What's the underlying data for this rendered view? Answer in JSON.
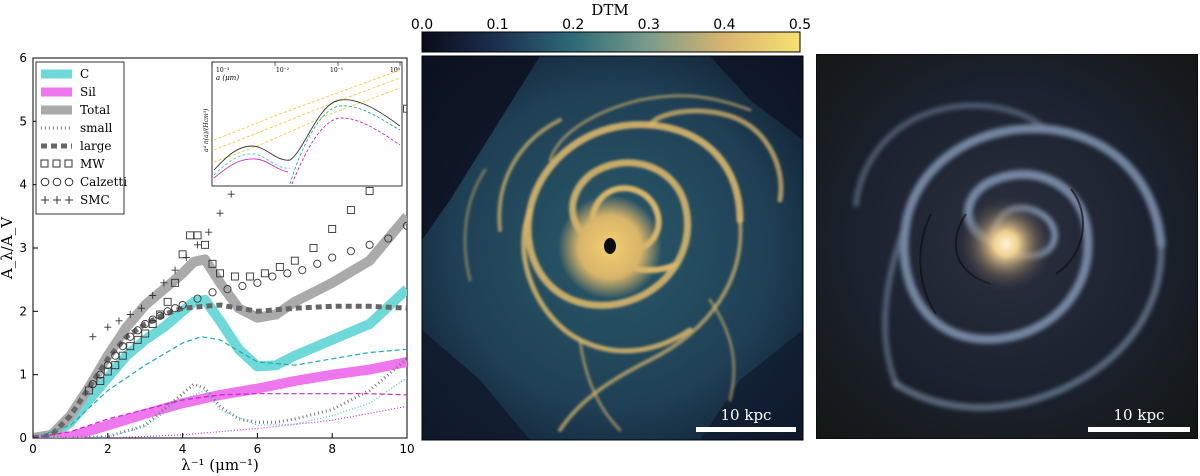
{
  "chart_data": [
    {
      "type": "line",
      "xlabel": "λ⁻¹ (μm⁻¹)",
      "ylabel": "A_λ/A_V",
      "xlim": [
        0,
        10
      ],
      "ylim": [
        0,
        6
      ],
      "xticks": [
        "0",
        "2",
        "4",
        "6",
        "8",
        "10"
      ],
      "yticks": [
        "0",
        "1",
        "2",
        "3",
        "4",
        "5",
        "6"
      ],
      "legend_position": "top-left",
      "legend": [
        {
          "label": "C",
          "color": "#6fd9d9",
          "style": "thick"
        },
        {
          "label": "Sil",
          "color": "#ee77ee",
          "style": "thick"
        },
        {
          "label": "Total",
          "color": "#aaaaaa",
          "style": "thick"
        },
        {
          "label": "small",
          "color": "#999999",
          "style": "dotted"
        },
        {
          "label": "large",
          "color": "#666666",
          "style": "dashed"
        },
        {
          "label": "MW",
          "color": "#333333",
          "style": "square"
        },
        {
          "label": "Calzetti",
          "color": "#333333",
          "style": "circle"
        },
        {
          "label": "SMC",
          "color": "#333333",
          "style": "plus"
        }
      ],
      "series": [
        {
          "name": "C",
          "color": "#6fd9d9",
          "width": 10,
          "x": [
            0,
            0.5,
            1,
            1.5,
            2,
            2.5,
            3,
            3.5,
            4,
            4.3,
            4.6,
            5,
            5.5,
            6,
            6.5,
            7,
            8,
            9,
            10
          ],
          "y": [
            0,
            0.03,
            0.25,
            0.6,
            0.95,
            1.3,
            1.55,
            1.75,
            2.0,
            2.15,
            2.18,
            1.85,
            1.4,
            1.13,
            1.15,
            1.3,
            1.55,
            1.8,
            2.35
          ]
        },
        {
          "name": "Sil",
          "color": "#ee77ee",
          "width": 10,
          "x": [
            0,
            1,
            2,
            3,
            4,
            5,
            6,
            7,
            8,
            9,
            10
          ],
          "y": [
            0,
            0.02,
            0.2,
            0.38,
            0.55,
            0.68,
            0.78,
            0.9,
            1.0,
            1.08,
            1.2
          ]
        },
        {
          "name": "Total",
          "color": "#aaaaaa",
          "width": 10,
          "x": [
            0,
            0.5,
            1,
            1.5,
            2,
            2.5,
            3,
            3.5,
            4,
            4.3,
            4.6,
            5,
            5.5,
            6,
            6.5,
            7,
            8,
            9,
            10
          ],
          "y": [
            0,
            0.05,
            0.35,
            0.8,
            1.3,
            1.75,
            2.1,
            2.35,
            2.6,
            2.78,
            2.82,
            2.45,
            2.05,
            1.9,
            1.95,
            2.15,
            2.45,
            2.8,
            3.5
          ]
        },
        {
          "name": "small",
          "color": "#777777",
          "width": 3,
          "dash": "1,3",
          "x": [
            0,
            1,
            2,
            3,
            3.5,
            4,
            4.3,
            4.6,
            5,
            5.5,
            6,
            6.5,
            7,
            8,
            9,
            10
          ],
          "y": [
            0,
            0,
            0.02,
            0.2,
            0.45,
            0.7,
            0.85,
            0.78,
            0.5,
            0.3,
            0.25,
            0.25,
            0.3,
            0.45,
            0.75,
            1.25
          ]
        },
        {
          "name": "large",
          "color": "#666666",
          "width": 5,
          "dash": "6,4",
          "x": [
            0,
            0.5,
            1,
            1.5,
            2,
            2.5,
            3,
            3.5,
            4,
            5,
            6,
            7,
            8,
            9,
            10
          ],
          "y": [
            0,
            0.05,
            0.35,
            0.8,
            1.25,
            1.6,
            1.8,
            1.95,
            2.05,
            2.1,
            2.0,
            2.05,
            2.08,
            2.08,
            2.05
          ]
        },
        {
          "name": "C-small",
          "color": "#44cccc",
          "width": 1.2,
          "dash": "1,2",
          "x": [
            0,
            2,
            3,
            4,
            4.6,
            5,
            6,
            7,
            8,
            9,
            10
          ],
          "y": [
            0,
            0.02,
            0.18,
            0.6,
            0.75,
            0.45,
            0.2,
            0.22,
            0.35,
            0.55,
            0.95
          ]
        },
        {
          "name": "C-large",
          "color": "#22aaaa",
          "width": 1.2,
          "dash": "5,3",
          "x": [
            0,
            1,
            2,
            3,
            4,
            4.5,
            5,
            6,
            7,
            8,
            9,
            10
          ],
          "y": [
            0,
            0.2,
            0.75,
            1.15,
            1.5,
            1.6,
            1.55,
            1.2,
            1.15,
            1.25,
            1.35,
            1.4
          ]
        },
        {
          "name": "Sil-small",
          "color": "#cc33cc",
          "width": 1.2,
          "dash": "1,2",
          "x": [
            0,
            2,
            4,
            6,
            8,
            10
          ],
          "y": [
            0,
            0,
            0.05,
            0.15,
            0.28,
            0.5
          ]
        },
        {
          "name": "Sil-large",
          "color": "#cc22cc",
          "width": 1.2,
          "dash": "5,3",
          "x": [
            0,
            1,
            2,
            3,
            4,
            5,
            6,
            7,
            8,
            9,
            10
          ],
          "y": [
            0,
            0.1,
            0.3,
            0.45,
            0.6,
            0.68,
            0.7,
            0.7,
            0.7,
            0.7,
            0.68
          ]
        }
      ],
      "markers": [
        {
          "name": "MW",
          "shape": "square",
          "x": [
            1.5,
            1.8,
            2.0,
            2.2,
            2.4,
            2.6,
            2.8,
            3.0,
            3.2,
            3.4,
            3.6,
            3.8,
            4.0,
            4.2,
            4.4,
            4.6,
            4.8,
            5.0,
            5.4,
            5.8,
            6.2,
            6.6,
            7.0,
            7.5,
            8.0,
            8.5,
            9.0,
            10.0
          ],
          "y": [
            0.75,
            0.9,
            1.05,
            1.15,
            1.3,
            1.45,
            1.55,
            1.65,
            1.8,
            1.95,
            2.15,
            2.45,
            2.9,
            3.2,
            3.2,
            3.05,
            2.75,
            2.6,
            2.55,
            2.55,
            2.6,
            2.7,
            2.8,
            3.0,
            3.3,
            3.6,
            3.9,
            5.2
          ]
        },
        {
          "name": "Calzetti",
          "shape": "circle",
          "x": [
            1.6,
            1.8,
            2.0,
            2.2,
            2.4,
            2.6,
            2.8,
            3.0,
            3.2,
            3.4,
            3.6,
            3.8,
            4.0,
            4.4,
            4.8,
            5.2,
            5.6,
            6.0,
            6.4,
            6.8,
            7.2,
            7.6,
            8.0,
            8.5,
            9.0,
            9.5,
            10.0
          ],
          "y": [
            0.85,
            1.0,
            1.15,
            1.3,
            1.45,
            1.6,
            1.7,
            1.8,
            1.87,
            1.93,
            2.0,
            2.05,
            2.1,
            2.2,
            2.3,
            2.35,
            2.4,
            2.45,
            2.55,
            2.6,
            2.65,
            2.75,
            2.85,
            2.95,
            3.05,
            3.15,
            3.35
          ]
        },
        {
          "name": "SMC",
          "shape": "plus",
          "x": [
            1.6,
            2.0,
            2.3,
            2.6,
            2.9,
            3.2,
            3.5,
            3.8,
            4.1,
            4.4,
            4.7,
            5.0,
            5.3,
            5.6,
            5.9,
            6.2,
            6.5,
            6.8,
            7.2
          ],
          "y": [
            1.6,
            1.75,
            1.85,
            1.95,
            2.05,
            2.25,
            2.45,
            2.65,
            2.85,
            3.05,
            3.25,
            3.55,
            3.85,
            4.15,
            4.45,
            4.75,
            5.05,
            5.35,
            5.75
          ]
        }
      ],
      "inset": {
        "xlabel": "a (μm)",
        "ylabel": "a⁴ n(a)/(Hcm³)",
        "xticks": [
          "10⁻³",
          "10⁻²",
          "10⁻¹",
          "10⁰"
        ]
      }
    },
    {
      "type": "heatmap",
      "colorbar_label": "DTM",
      "colorbar_ticks": [
        "0.0",
        "0.1",
        "0.2",
        "0.3",
        "0.4",
        "0.5"
      ],
      "colorbar_range": [
        0,
        0.5
      ],
      "scalebar": "10 kpc"
    }
  ],
  "galaxy_image": {
    "scalebar": "10 kpc"
  }
}
